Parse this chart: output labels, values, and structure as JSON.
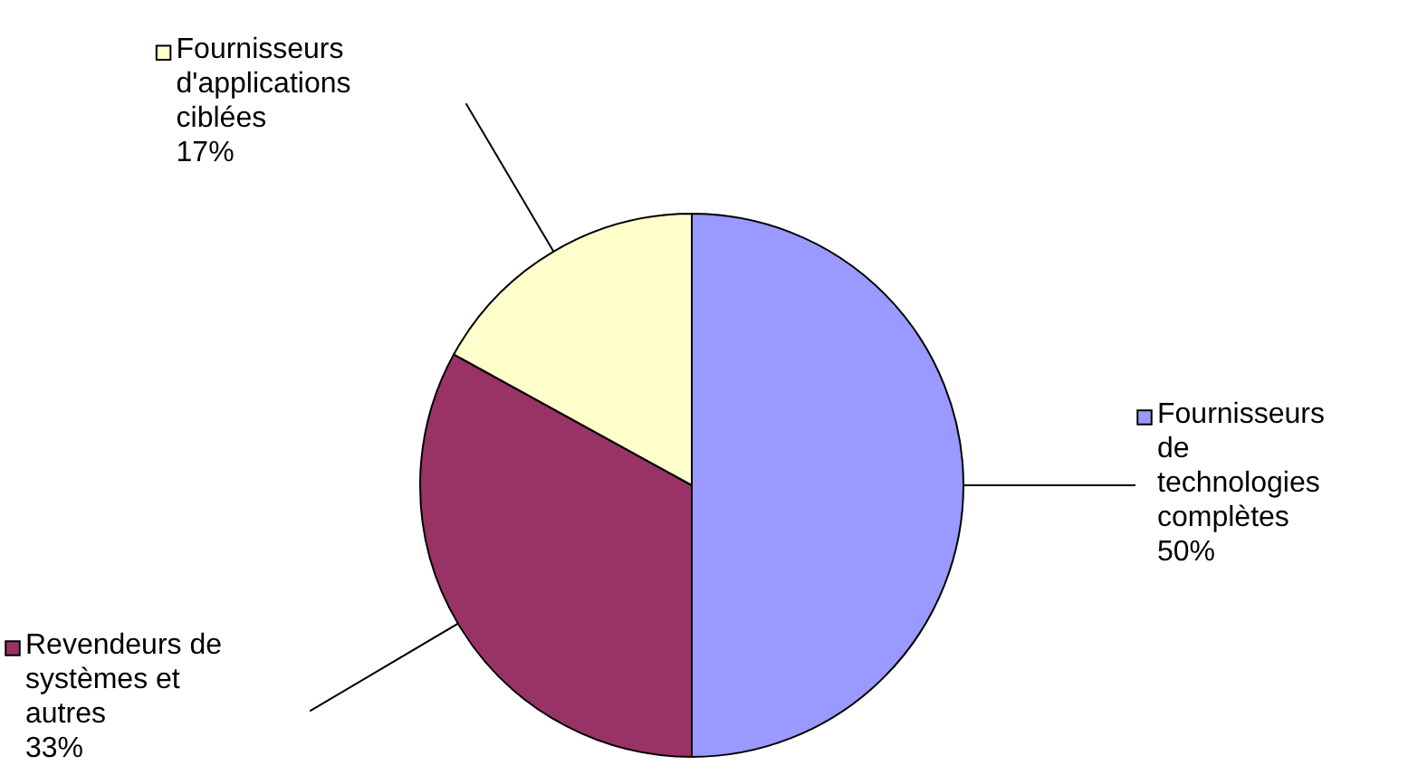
{
  "chart_data": {
    "type": "pie",
    "categories": [
      "Fournisseurs\nde\ntechnologies\ncomplètes",
      "Revendeurs de\nsystèmes et\nautres",
      "Fournisseurs\nd'applications\nciblées"
    ],
    "values": [
      50,
      33,
      17
    ],
    "value_labels": [
      "50%",
      "33%",
      "17%"
    ],
    "colors": [
      "#9999ff",
      "#993366",
      "#ffffcc"
    ],
    "legend": "left"
  }
}
